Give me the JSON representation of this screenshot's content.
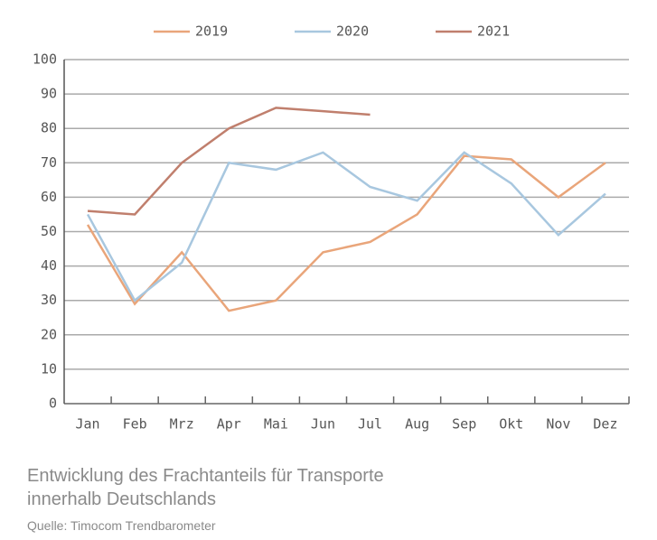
{
  "chart_data": {
    "type": "line",
    "categories": [
      "Jan",
      "Feb",
      "Mrz",
      "Apr",
      "Mai",
      "Jun",
      "Jul",
      "Aug",
      "Sep",
      "Okt",
      "Nov",
      "Dez"
    ],
    "series": [
      {
        "name": "2019",
        "color": "#e9a57a",
        "values": [
          52,
          29,
          44,
          27,
          30,
          44,
          47,
          55,
          72,
          71,
          60,
          70
        ]
      },
      {
        "name": "2020",
        "color": "#a8c7df",
        "values": [
          55,
          30,
          41,
          70,
          68,
          73,
          63,
          59,
          73,
          64,
          49,
          61
        ]
      },
      {
        "name": "2021",
        "color": "#c07f6d",
        "values": [
          56,
          55,
          70,
          80,
          86,
          85,
          84,
          null,
          null,
          null,
          null,
          null
        ]
      }
    ],
    "ylim": [
      0,
      100
    ],
    "yticks": [
      0,
      10,
      20,
      30,
      40,
      50,
      60,
      70,
      80,
      90,
      100
    ],
    "grid": true,
    "legend": "top",
    "caption": [
      "Entwicklung des Frachtanteils für Transporte",
      "innerhalb Deutschlands"
    ],
    "source": "Quelle: Timocom Trendbarometer"
  }
}
